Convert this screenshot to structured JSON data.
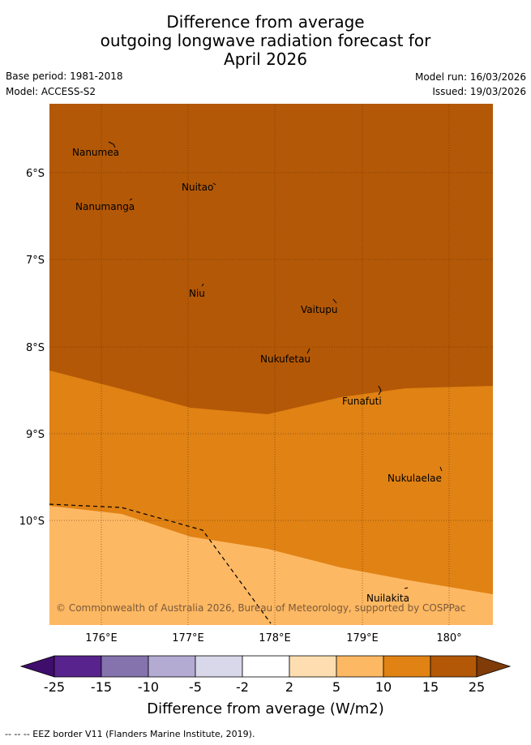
{
  "title_lines": [
    "Difference from average",
    "outgoing longwave radiation forecast for",
    "April 2026"
  ],
  "meta": {
    "base_period": "Base period: 1981-2018",
    "model": "Model: ACCESS-S2",
    "model_run": "Model run: 16/03/2026",
    "issued": "Issued: 19/03/2026"
  },
  "axes": {
    "lat_labels": [
      "6°S",
      "7°S",
      "8°S",
      "9°S",
      "10°S"
    ],
    "lon_labels": [
      "176°E",
      "177°E",
      "178°E",
      "179°E",
      "180°"
    ]
  },
  "places": [
    "Nanumea",
    "Nuitao",
    "Nanumanga",
    "Niu",
    "Vaitupu",
    "Nukufetau",
    "Funafuti",
    "Nukulaelae",
    "Nuilakita"
  ],
  "copyright": "© Commonwealth of Australia 2026, Bureau of Meteorology, supported by COSPPac",
  "colorbar": {
    "ticks": [
      "-25",
      "-15",
      "-10",
      "-5",
      "-2",
      "2",
      "5",
      "10",
      "15",
      "25"
    ],
    "colors": [
      "#3f0d6b",
      "#58238c",
      "#8473ad",
      "#b3abd2",
      "#d8d8ea",
      "#ffffff",
      "#fedeb0",
      "#fdb863",
      "#e08214",
      "#b35806",
      "#7f3b08"
    ],
    "title": "Difference from average (W/m2)"
  },
  "footer": "--  --  -- EEZ border V11 (Flanders Marine Institute, 2019)."
}
